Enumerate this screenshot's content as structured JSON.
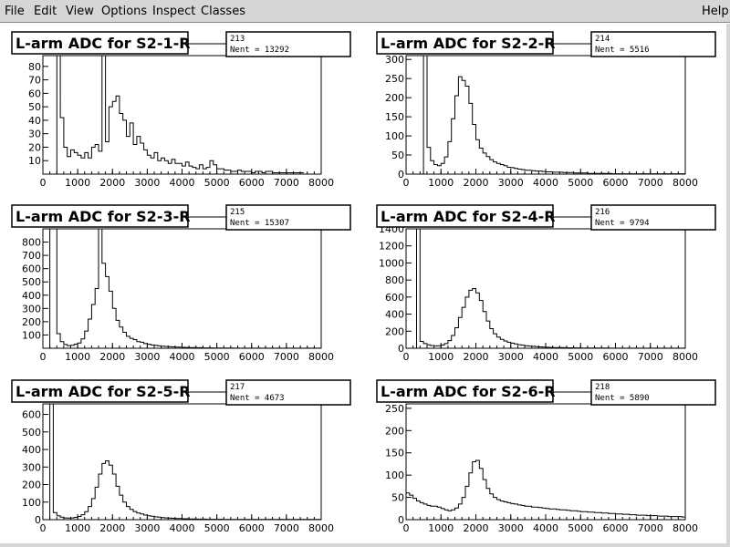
{
  "menu": {
    "file": "File",
    "edit": "Edit",
    "view": "View",
    "options": "Options",
    "inspect": "Inspect",
    "classes": "Classes",
    "help": "Help"
  },
  "chart_data": [
    {
      "type": "histogram",
      "title": "L-arm ADC for S2-1-R",
      "stats_id": "213",
      "stats_entries": "Nent = 13292",
      "xlim": [
        0,
        8000
      ],
      "ylim": [
        0,
        88
      ],
      "x_ticks": [
        0,
        1000,
        2000,
        3000,
        4000,
        5000,
        6000,
        7000,
        8000
      ],
      "y_ticks": [
        10,
        20,
        30,
        40,
        50,
        60,
        70,
        80
      ],
      "bin_width": 100,
      "x_start": 400,
      "values": [
        88,
        42,
        20,
        13,
        18,
        16,
        14,
        12,
        16,
        12,
        20,
        22,
        17,
        88,
        24,
        50,
        54,
        58,
        45,
        40,
        28,
        38,
        22,
        28,
        23,
        18,
        14,
        12,
        16,
        10,
        12,
        10,
        8,
        11,
        8,
        8,
        6,
        9,
        6,
        5,
        4,
        7,
        4,
        5,
        10,
        7,
        4,
        4,
        3,
        3,
        2,
        2,
        3,
        2,
        2,
        2,
        1,
        2,
        2,
        1,
        2,
        2,
        1,
        1,
        1,
        1,
        1,
        1,
        1,
        1,
        1
      ]
    },
    {
      "type": "histogram",
      "title": "L-arm ADC for S2-2-R",
      "stats_id": "214",
      "stats_entries": "Nent = 5516",
      "xlim": [
        0,
        8000
      ],
      "ylim": [
        0,
        310
      ],
      "x_ticks": [
        0,
        1000,
        2000,
        3000,
        4000,
        5000,
        6000,
        7000,
        8000
      ],
      "y_ticks": [
        0,
        50,
        100,
        150,
        200,
        250,
        300
      ],
      "bin_width": 100,
      "x_start": 500,
      "values": [
        310,
        70,
        35,
        25,
        22,
        28,
        45,
        85,
        145,
        205,
        255,
        245,
        230,
        185,
        130,
        90,
        68,
        55,
        46,
        38,
        32,
        28,
        25,
        22,
        18,
        17,
        15,
        13,
        12,
        10,
        10,
        9,
        8,
        8,
        7,
        6,
        6,
        5,
        5,
        5,
        4,
        4,
        4,
        3,
        3,
        3,
        3,
        2,
        2,
        2,
        2,
        2,
        2,
        2,
        1,
        1,
        1,
        1,
        1,
        1,
        1,
        1,
        1,
        1,
        1,
        1,
        1,
        1,
        1,
        1,
        1,
        1,
        1,
        1,
        1
      ]
    },
    {
      "type": "histogram",
      "title": "L-arm ADC for S2-3-R",
      "stats_id": "215",
      "stats_entries": "Nent = 15307",
      "xlim": [
        0,
        8000
      ],
      "ylim": [
        0,
        900
      ],
      "x_ticks": [
        0,
        1000,
        2000,
        3000,
        4000,
        5000,
        6000,
        7000,
        8000
      ],
      "y_ticks": [
        100,
        200,
        300,
        400,
        500,
        600,
        700,
        800
      ],
      "bin_width": 100,
      "x_start": 200,
      "values": [
        900,
        900,
        110,
        50,
        28,
        20,
        22,
        30,
        40,
        70,
        130,
        220,
        330,
        450,
        900,
        640,
        540,
        430,
        300,
        210,
        160,
        120,
        90,
        75,
        65,
        50,
        45,
        35,
        30,
        25,
        22,
        18,
        16,
        14,
        12,
        10,
        9,
        8,
        7,
        6,
        5,
        5,
        4,
        4,
        3,
        3,
        3,
        2,
        2,
        2,
        2,
        2,
        2,
        1,
        1,
        1,
        1,
        1,
        1,
        1,
        1,
        1,
        1,
        1,
        1,
        1,
        1,
        1,
        1,
        1,
        1,
        1,
        1,
        1,
        1,
        1,
        1,
        1
      ]
    },
    {
      "type": "histogram",
      "title": "L-arm ADC for S2-4-R",
      "stats_id": "216",
      "stats_entries": "Nent = 9794",
      "xlim": [
        0,
        8000
      ],
      "ylim": [
        0,
        1400
      ],
      "x_ticks": [
        0,
        1000,
        2000,
        3000,
        4000,
        5000,
        6000,
        7000,
        8000
      ],
      "y_ticks": [
        0,
        200,
        400,
        600,
        800,
        1000,
        1200,
        1400
      ],
      "bin_width": 100,
      "x_start": 300,
      "values": [
        1400,
        80,
        55,
        40,
        32,
        28,
        30,
        38,
        55,
        90,
        150,
        240,
        360,
        480,
        600,
        680,
        700,
        650,
        560,
        430,
        320,
        230,
        170,
        130,
        105,
        85,
        70,
        60,
        50,
        42,
        36,
        30,
        26,
        22,
        19,
        16,
        14,
        12,
        10,
        9,
        8,
        7,
        6,
        5,
        5,
        4,
        4,
        3,
        3,
        3,
        2,
        2,
        2,
        2,
        2,
        1,
        1,
        1,
        1,
        1,
        1,
        1,
        1,
        1,
        1,
        1,
        1,
        1,
        1,
        1,
        1,
        1,
        1,
        1,
        1,
        1,
        1
      ]
    },
    {
      "type": "histogram",
      "title": "L-arm ADC for S2-5-R",
      "stats_id": "217",
      "stats_entries": "Nent = 4673",
      "xlim": [
        0,
        8000
      ],
      "ylim": [
        0,
        660
      ],
      "x_ticks": [
        0,
        1000,
        2000,
        3000,
        4000,
        5000,
        6000,
        7000,
        8000
      ],
      "y_ticks": [
        0,
        100,
        200,
        300,
        400,
        500,
        600
      ],
      "bin_width": 100,
      "x_start": 200,
      "values": [
        660,
        40,
        22,
        14,
        10,
        9,
        10,
        13,
        18,
        28,
        45,
        75,
        120,
        185,
        260,
        320,
        335,
        310,
        260,
        190,
        140,
        100,
        75,
        58,
        46,
        38,
        32,
        26,
        22,
        19,
        16,
        14,
        12,
        10,
        9,
        8,
        7,
        6,
        5,
        5,
        4,
        4,
        3,
        3,
        3,
        2,
        2,
        2,
        2,
        2,
        1,
        1,
        1,
        1,
        1,
        1,
        1,
        1,
        1,
        1,
        1,
        1,
        1,
        1,
        1,
        1,
        1,
        1,
        1,
        1,
        1,
        1,
        1,
        1,
        1,
        1,
        1,
        1
      ]
    },
    {
      "type": "histogram",
      "title": "L-arm ADC for S2-6-R",
      "stats_id": "218",
      "stats_entries": "Nent = 5890",
      "xlim": [
        0,
        8000
      ],
      "ylim": [
        0,
        260
      ],
      "x_ticks": [
        0,
        1000,
        2000,
        3000,
        4000,
        5000,
        6000,
        7000,
        8000
      ],
      "y_ticks": [
        0,
        50,
        100,
        150,
        200,
        250
      ],
      "bin_width": 100,
      "x_start": 0,
      "values": [
        60,
        55,
        48,
        42,
        38,
        35,
        32,
        30,
        30,
        28,
        25,
        22,
        20,
        22,
        26,
        35,
        50,
        75,
        105,
        130,
        133,
        115,
        90,
        70,
        58,
        50,
        45,
        42,
        40,
        38,
        36,
        35,
        33,
        32,
        30,
        30,
        28,
        28,
        27,
        26,
        25,
        24,
        24,
        23,
        22,
        22,
        21,
        20,
        20,
        19,
        18,
        18,
        17,
        17,
        16,
        16,
        15,
        15,
        14,
        14,
        13,
        13,
        12,
        12,
        11,
        11,
        10,
        10,
        10,
        9,
        9,
        9,
        8,
        8,
        8,
        7,
        7,
        7,
        7,
        6
      ]
    }
  ]
}
